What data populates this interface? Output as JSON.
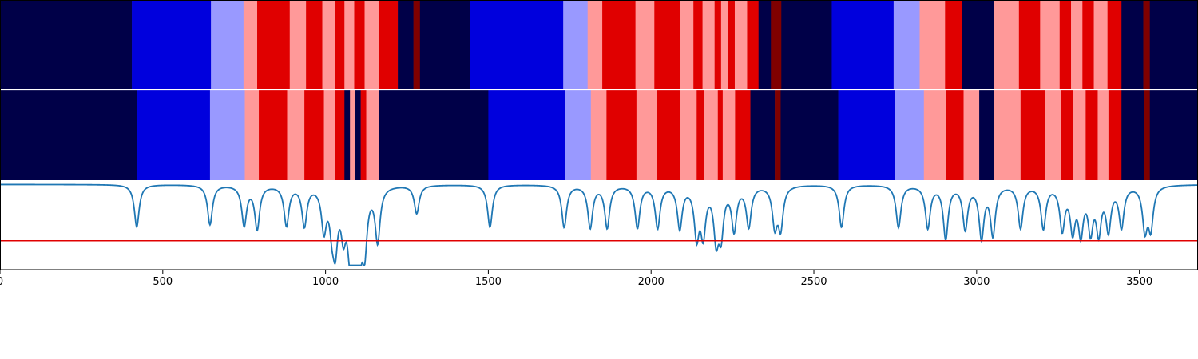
{
  "colors": {
    "navy": "#000048",
    "blue": "#0000dd",
    "light_blue": "#9999ff",
    "pink": "#ff9999",
    "red": "#e00000",
    "dark_red": "#800000",
    "curve": "#1f77b4",
    "threshold": "#e00000",
    "frame": "#000000",
    "divider": "#ffffff"
  },
  "chart_data": [
    {
      "type": "heatmap",
      "name": "segmentation-row-1",
      "xlim": [
        0,
        3680
      ],
      "segments": [
        {
          "start": 0,
          "end": 405,
          "cls": "navy"
        },
        {
          "start": 405,
          "end": 648,
          "cls": "blue"
        },
        {
          "start": 648,
          "end": 748,
          "cls": "light_blue"
        },
        {
          "start": 748,
          "end": 790,
          "cls": "pink"
        },
        {
          "start": 790,
          "end": 890,
          "cls": "red"
        },
        {
          "start": 890,
          "end": 940,
          "cls": "pink"
        },
        {
          "start": 940,
          "end": 990,
          "cls": "red"
        },
        {
          "start": 990,
          "end": 1030,
          "cls": "pink"
        },
        {
          "start": 1030,
          "end": 1058,
          "cls": "red"
        },
        {
          "start": 1058,
          "end": 1088,
          "cls": "pink"
        },
        {
          "start": 1088,
          "end": 1120,
          "cls": "red"
        },
        {
          "start": 1120,
          "end": 1165,
          "cls": "pink"
        },
        {
          "start": 1165,
          "end": 1222,
          "cls": "red"
        },
        {
          "start": 1222,
          "end": 1270,
          "cls": "navy"
        },
        {
          "start": 1270,
          "end": 1290,
          "cls": "dark_red"
        },
        {
          "start": 1290,
          "end": 1445,
          "cls": "navy"
        },
        {
          "start": 1445,
          "end": 1730,
          "cls": "blue"
        },
        {
          "start": 1730,
          "end": 1805,
          "cls": "light_blue"
        },
        {
          "start": 1805,
          "end": 1850,
          "cls": "pink"
        },
        {
          "start": 1850,
          "end": 1952,
          "cls": "red"
        },
        {
          "start": 1952,
          "end": 2010,
          "cls": "pink"
        },
        {
          "start": 2010,
          "end": 2088,
          "cls": "red"
        },
        {
          "start": 2088,
          "end": 2130,
          "cls": "pink"
        },
        {
          "start": 2130,
          "end": 2158,
          "cls": "red"
        },
        {
          "start": 2158,
          "end": 2195,
          "cls": "pink"
        },
        {
          "start": 2195,
          "end": 2215,
          "cls": "red"
        },
        {
          "start": 2215,
          "end": 2235,
          "cls": "pink"
        },
        {
          "start": 2235,
          "end": 2257,
          "cls": "red"
        },
        {
          "start": 2257,
          "end": 2295,
          "cls": "pink"
        },
        {
          "start": 2295,
          "end": 2330,
          "cls": "red"
        },
        {
          "start": 2330,
          "end": 2368,
          "cls": "navy"
        },
        {
          "start": 2368,
          "end": 2400,
          "cls": "dark_red"
        },
        {
          "start": 2400,
          "end": 2555,
          "cls": "navy"
        },
        {
          "start": 2555,
          "end": 2745,
          "cls": "blue"
        },
        {
          "start": 2745,
          "end": 2825,
          "cls": "light_blue"
        },
        {
          "start": 2825,
          "end": 2903,
          "cls": "pink"
        },
        {
          "start": 2903,
          "end": 2955,
          "cls": "red"
        },
        {
          "start": 2955,
          "end": 3052,
          "cls": "navy"
        },
        {
          "start": 3052,
          "end": 3130,
          "cls": "pink"
        },
        {
          "start": 3130,
          "end": 3195,
          "cls": "red"
        },
        {
          "start": 3195,
          "end": 3255,
          "cls": "pink"
        },
        {
          "start": 3255,
          "end": 3290,
          "cls": "red"
        },
        {
          "start": 3290,
          "end": 3325,
          "cls": "pink"
        },
        {
          "start": 3325,
          "end": 3360,
          "cls": "red"
        },
        {
          "start": 3360,
          "end": 3402,
          "cls": "pink"
        },
        {
          "start": 3402,
          "end": 3445,
          "cls": "red"
        },
        {
          "start": 3445,
          "end": 3512,
          "cls": "navy"
        },
        {
          "start": 3512,
          "end": 3532,
          "cls": "dark_red"
        },
        {
          "start": 3532,
          "end": 3680,
          "cls": "navy"
        }
      ]
    },
    {
      "type": "heatmap",
      "name": "segmentation-row-2",
      "xlim": [
        0,
        3680
      ],
      "segments": [
        {
          "start": 0,
          "end": 422,
          "cls": "navy"
        },
        {
          "start": 422,
          "end": 645,
          "cls": "blue"
        },
        {
          "start": 645,
          "end": 752,
          "cls": "light_blue"
        },
        {
          "start": 752,
          "end": 795,
          "cls": "pink"
        },
        {
          "start": 795,
          "end": 882,
          "cls": "red"
        },
        {
          "start": 882,
          "end": 935,
          "cls": "pink"
        },
        {
          "start": 935,
          "end": 995,
          "cls": "red"
        },
        {
          "start": 995,
          "end": 1030,
          "cls": "pink"
        },
        {
          "start": 1030,
          "end": 1058,
          "cls": "red"
        },
        {
          "start": 1058,
          "end": 1075,
          "cls": "navy"
        },
        {
          "start": 1075,
          "end": 1090,
          "cls": "pink"
        },
        {
          "start": 1090,
          "end": 1108,
          "cls": "navy"
        },
        {
          "start": 1108,
          "end": 1125,
          "cls": "red"
        },
        {
          "start": 1125,
          "end": 1165,
          "cls": "pink"
        },
        {
          "start": 1165,
          "end": 1500,
          "cls": "navy"
        },
        {
          "start": 1500,
          "end": 1735,
          "cls": "blue"
        },
        {
          "start": 1735,
          "end": 1815,
          "cls": "light_blue"
        },
        {
          "start": 1815,
          "end": 1863,
          "cls": "pink"
        },
        {
          "start": 1863,
          "end": 1955,
          "cls": "red"
        },
        {
          "start": 1955,
          "end": 2018,
          "cls": "pink"
        },
        {
          "start": 2018,
          "end": 2088,
          "cls": "red"
        },
        {
          "start": 2088,
          "end": 2140,
          "cls": "pink"
        },
        {
          "start": 2140,
          "end": 2162,
          "cls": "red"
        },
        {
          "start": 2162,
          "end": 2205,
          "cls": "pink"
        },
        {
          "start": 2205,
          "end": 2220,
          "cls": "red"
        },
        {
          "start": 2220,
          "end": 2258,
          "cls": "pink"
        },
        {
          "start": 2258,
          "end": 2305,
          "cls": "red"
        },
        {
          "start": 2305,
          "end": 2380,
          "cls": "navy"
        },
        {
          "start": 2380,
          "end": 2398,
          "cls": "dark_red"
        },
        {
          "start": 2398,
          "end": 2575,
          "cls": "navy"
        },
        {
          "start": 2575,
          "end": 2750,
          "cls": "blue"
        },
        {
          "start": 2750,
          "end": 2838,
          "cls": "light_blue"
        },
        {
          "start": 2838,
          "end": 2905,
          "cls": "pink"
        },
        {
          "start": 2905,
          "end": 2960,
          "cls": "red"
        },
        {
          "start": 2960,
          "end": 3008,
          "cls": "pink"
        },
        {
          "start": 3008,
          "end": 3052,
          "cls": "navy"
        },
        {
          "start": 3052,
          "end": 3135,
          "cls": "pink"
        },
        {
          "start": 3135,
          "end": 3210,
          "cls": "red"
        },
        {
          "start": 3210,
          "end": 3260,
          "cls": "pink"
        },
        {
          "start": 3260,
          "end": 3295,
          "cls": "red"
        },
        {
          "start": 3295,
          "end": 3335,
          "cls": "pink"
        },
        {
          "start": 3335,
          "end": 3372,
          "cls": "red"
        },
        {
          "start": 3372,
          "end": 3405,
          "cls": "pink"
        },
        {
          "start": 3405,
          "end": 3445,
          "cls": "red"
        },
        {
          "start": 3445,
          "end": 3515,
          "cls": "navy"
        },
        {
          "start": 3515,
          "end": 3532,
          "cls": "dark_red"
        },
        {
          "start": 3532,
          "end": 3680,
          "cls": "navy"
        }
      ]
    },
    {
      "type": "line",
      "name": "novelty-curve",
      "xlim": [
        0,
        3680
      ],
      "ylim": [
        0,
        1
      ],
      "threshold": 0.33,
      "baseline": 0.97,
      "dips": [
        {
          "x": 420,
          "depth": 0.48
        },
        {
          "x": 645,
          "depth": 0.45
        },
        {
          "x": 750,
          "depth": 0.45
        },
        {
          "x": 790,
          "depth": 0.49
        },
        {
          "x": 880,
          "depth": 0.45
        },
        {
          "x": 935,
          "depth": 0.45
        },
        {
          "x": 995,
          "depth": 0.47
        },
        {
          "x": 1020,
          "depth": 0.36
        },
        {
          "x": 1030,
          "depth": 0.59
        },
        {
          "x": 1055,
          "depth": 0.45
        },
        {
          "x": 1075,
          "depth": 0.63
        },
        {
          "x": 1090,
          "depth": 0.62
        },
        {
          "x": 1105,
          "depth": 0.58
        },
        {
          "x": 1120,
          "depth": 0.64
        },
        {
          "x": 1160,
          "depth": 0.61
        },
        {
          "x": 1280,
          "depth": 0.32
        },
        {
          "x": 1505,
          "depth": 0.48
        },
        {
          "x": 1733,
          "depth": 0.48
        },
        {
          "x": 1813,
          "depth": 0.48
        },
        {
          "x": 1865,
          "depth": 0.48
        },
        {
          "x": 1958,
          "depth": 0.48
        },
        {
          "x": 2020,
          "depth": 0.48
        },
        {
          "x": 2088,
          "depth": 0.48
        },
        {
          "x": 2140,
          "depth": 0.55
        },
        {
          "x": 2160,
          "depth": 0.52
        },
        {
          "x": 2200,
          "depth": 0.56
        },
        {
          "x": 2215,
          "depth": 0.5
        },
        {
          "x": 2255,
          "depth": 0.49
        },
        {
          "x": 2300,
          "depth": 0.46
        },
        {
          "x": 2380,
          "depth": 0.44
        },
        {
          "x": 2398,
          "depth": 0.46
        },
        {
          "x": 2585,
          "depth": 0.48
        },
        {
          "x": 2760,
          "depth": 0.48
        },
        {
          "x": 2850,
          "depth": 0.48
        },
        {
          "x": 2905,
          "depth": 0.6
        },
        {
          "x": 2965,
          "depth": 0.49
        },
        {
          "x": 3015,
          "depth": 0.58
        },
        {
          "x": 3050,
          "depth": 0.55
        },
        {
          "x": 3135,
          "depth": 0.48
        },
        {
          "x": 3205,
          "depth": 0.48
        },
        {
          "x": 3263,
          "depth": 0.48
        },
        {
          "x": 3295,
          "depth": 0.48
        },
        {
          "x": 3320,
          "depth": 0.51
        },
        {
          "x": 3350,
          "depth": 0.48
        },
        {
          "x": 3375,
          "depth": 0.5
        },
        {
          "x": 3405,
          "depth": 0.48
        },
        {
          "x": 3445,
          "depth": 0.46
        },
        {
          "x": 3517,
          "depth": 0.48
        },
        {
          "x": 3535,
          "depth": 0.46
        }
      ],
      "xticks": [
        0,
        500,
        1000,
        1500,
        2000,
        2500,
        3000,
        3500
      ],
      "xtick_labels": [
        "0",
        "500",
        "1000",
        "1500",
        "2000",
        "2500",
        "3000",
        "3500"
      ]
    }
  ]
}
